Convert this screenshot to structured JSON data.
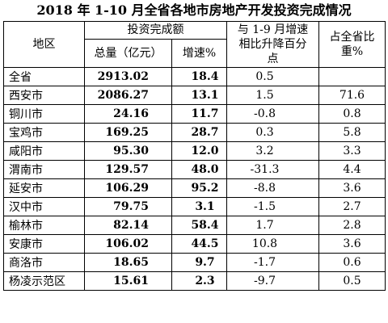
{
  "title": "2018 年 1-10 月全省各地市房地产开发投资完成情况",
  "headers": {
    "region": "地区",
    "investment": "投资完成额",
    "total": "总量（亿元）",
    "growth": "增速%",
    "change": "与 1-9 月增速相比升降百分点",
    "share": "占全省比重%"
  },
  "rows": [
    {
      "region": "全省",
      "total": "2913.02",
      "growth": "18.4",
      "change": "0.5",
      "share": ""
    },
    {
      "region": "西安市",
      "total": "2086.27",
      "growth": "13.1",
      "change": "1.5",
      "share": "71.6"
    },
    {
      "region": "铜川市",
      "total": "24.16",
      "growth": "11.7",
      "change": "-0.8",
      "share": "0.8"
    },
    {
      "region": "宝鸡市",
      "total": "169.25",
      "growth": "28.7",
      "change": "0.3",
      "share": "5.8"
    },
    {
      "region": "咸阳市",
      "total": "95.30",
      "growth": "12.0",
      "change": "3.2",
      "share": "3.3"
    },
    {
      "region": "渭南市",
      "total": "129.57",
      "growth": "48.0",
      "change": "-31.3",
      "share": "4.4"
    },
    {
      "region": "延安市",
      "total": "106.29",
      "growth": "95.2",
      "change": "-8.8",
      "share": "3.6"
    },
    {
      "region": "汉中市",
      "total": "79.75",
      "growth": "3.1",
      "change": "-1.5",
      "share": "2.7"
    },
    {
      "region": "榆林市",
      "total": "82.14",
      "growth": "58.4",
      "change": "1.7",
      "share": "2.8"
    },
    {
      "region": "安康市",
      "total": "106.02",
      "growth": "44.5",
      "change": "10.8",
      "share": "3.6"
    },
    {
      "region": "商洛市",
      "total": "18.65",
      "growth": "9.7",
      "change": "-1.7",
      "share": "0.6"
    },
    {
      "region": "杨凌示范区",
      "total": "15.61",
      "growth": "2.3",
      "change": "-9.7",
      "share": "0.5"
    }
  ]
}
